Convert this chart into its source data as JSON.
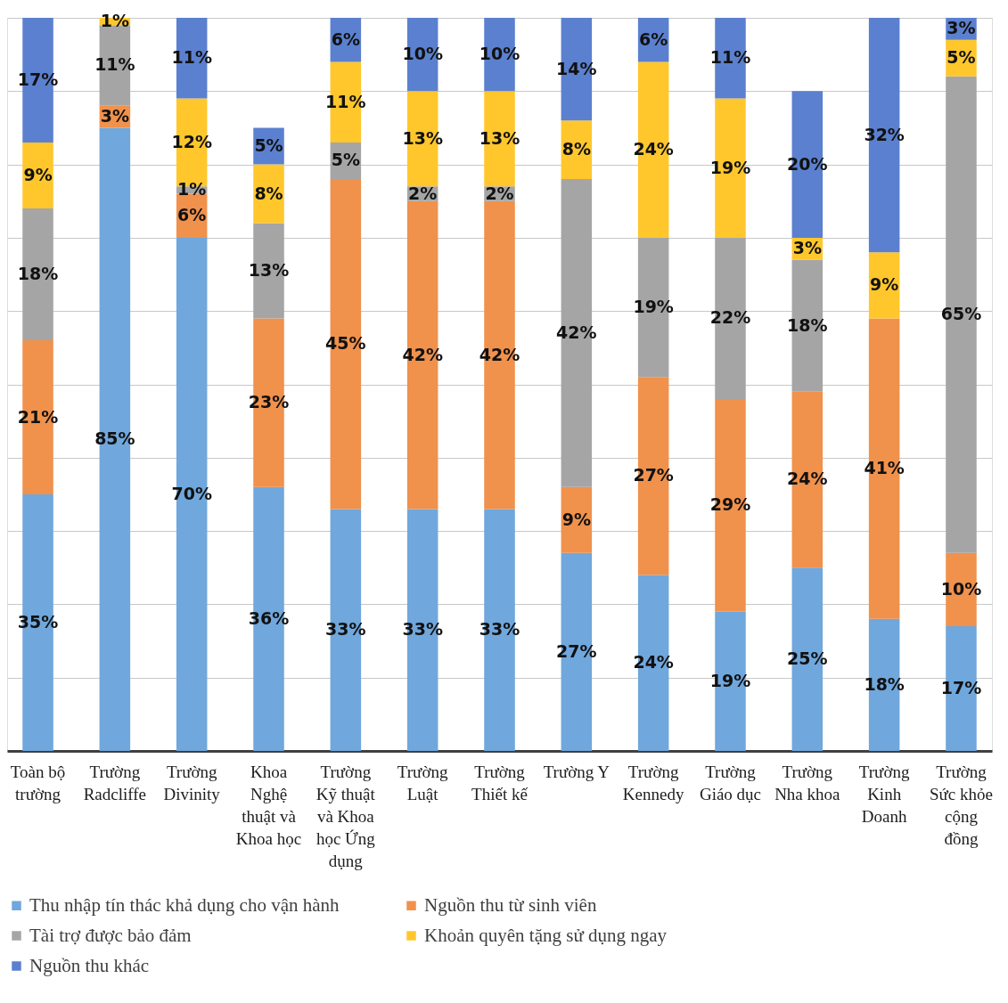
{
  "chart_data": {
    "type": "bar",
    "stacked": true,
    "grid": "y",
    "tick_labels": "x",
    "legend": "bottom",
    "categories": [
      "Toàn bộ trường",
      "Trường Radcliffe",
      "Trường Divinity",
      "Khoa Nghệ thuật và Khoa học",
      "Trường Kỹ thuật và Khoa học Ứng dụng",
      "Trường Luật",
      "Trường Thiết kế",
      "Trường Y",
      "Trường Kennedy",
      "Trường Giáo dục",
      "Trường Nha khoa",
      "Trường Kinh Doanh",
      "Trường Sức khỏe cộng đồng"
    ],
    "series": [
      {
        "name": "Thu nhập tín thác khả dụng cho vận hành",
        "color": "#70a7dc",
        "values": [
          35,
          85,
          70,
          36,
          33,
          33,
          33,
          27,
          24,
          19,
          25,
          18,
          17
        ],
        "value_labels": [
          "35%",
          "85%",
          "70%",
          "36%",
          "33%",
          "33%",
          "33%",
          "27%",
          "24%",
          "19%",
          "25%",
          "18%",
          "17%"
        ]
      },
      {
        "name": "Nguồn thu từ sinh viên",
        "color": "#f0914c",
        "values": [
          21,
          3,
          6,
          23,
          45,
          42,
          42,
          9,
          27,
          29,
          24,
          41,
          10
        ],
        "value_labels": [
          "21%",
          "3%",
          "6%",
          "23%",
          "45%",
          "42%",
          "42%",
          "9%",
          "27%",
          "29%",
          "24%",
          "41%",
          "10%"
        ]
      },
      {
        "name": "Tài trợ được bảo đảm",
        "color": "#a5a5a5",
        "values": [
          18,
          11,
          1,
          13,
          5,
          2,
          2,
          42,
          19,
          22,
          18,
          null,
          65
        ],
        "value_labels": [
          "18%",
          "11%",
          "1%",
          "13%",
          "5%",
          "2%",
          "2%",
          "42%",
          "19%",
          "22%",
          "18%",
          null,
          "65%"
        ]
      },
      {
        "name": "Khoản quyên tặng sử dụng ngay",
        "color": "#ffc72c",
        "values": [
          9,
          1,
          12,
          8,
          11,
          13,
          13,
          8,
          24,
          19,
          3,
          9,
          5
        ],
        "value_labels": [
          "9%",
          "1%",
          "12%",
          "8%",
          "11%",
          "13%",
          "13%",
          "8%",
          "24%",
          "19%",
          "3%",
          "9%",
          "5%"
        ]
      },
      {
        "name": "Nguồn thu khác",
        "color": "#5b80cf",
        "values": [
          17,
          null,
          11,
          5,
          6,
          10,
          10,
          14,
          6,
          11,
          20,
          32,
          3
        ],
        "value_labels": [
          "17%",
          null,
          "11%",
          "5%",
          "6%",
          "10%",
          "10%",
          "14%",
          "6%",
          "11%",
          "20%",
          "32%",
          "3%"
        ]
      }
    ]
  }
}
